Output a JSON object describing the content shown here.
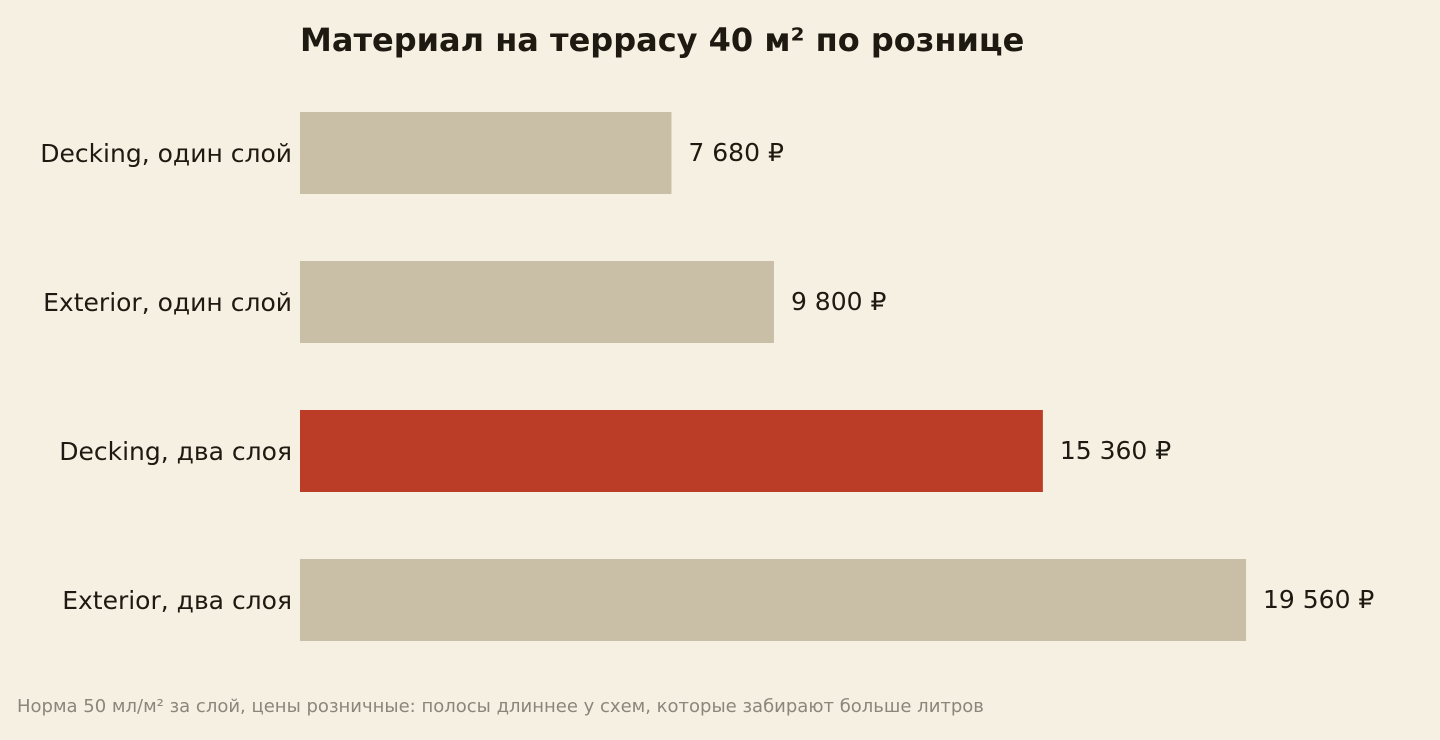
{
  "colors": {
    "background": "#f6f0e3",
    "text": "#1e1a12",
    "bar_default": "#c9bfa7",
    "bar_highlight": "#bb3c27",
    "footnote": "#8c857a"
  },
  "footnote": "Норма 50 мл/м² за слой, цены розничные: полосы длиннее у схем, которые забирают больше литров",
  "chart_data": {
    "type": "bar",
    "orientation": "horizontal",
    "title": "Материал на террасу 40 м² по рознице",
    "categories": [
      "Decking, один слой",
      "Exterior, один слой",
      "Decking, два слоя",
      "Exterior, два слоя"
    ],
    "values": [
      7680,
      9800,
      15360,
      19560
    ],
    "value_labels": [
      "7 680 ₽",
      "9 800 ₽",
      "15 360 ₽",
      "19 560 ₽"
    ],
    "highlight_index": 2,
    "xlim": [
      0,
      19560
    ],
    "grid": false,
    "legend": "none"
  }
}
